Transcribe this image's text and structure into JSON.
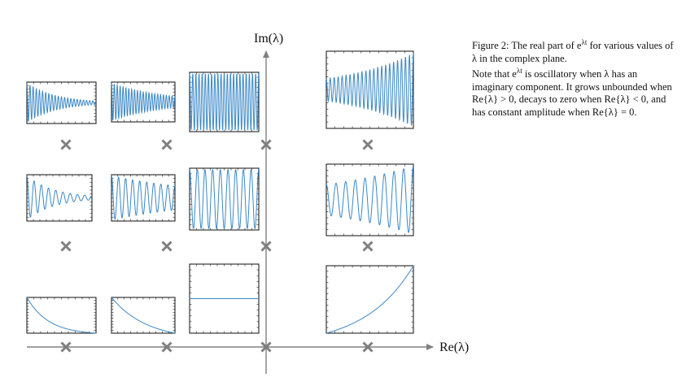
{
  "axes": {
    "x_label": "Re(λ)",
    "y_label": "Im(λ)"
  },
  "caption": {
    "figure_label": "Figure 2:",
    "line1_pre": "The real part of e",
    "line1_sup": "λt",
    "line1_post": " for various values of λ in the complex plane.",
    "line2": "Note that e",
    "line2_sup": "λt",
    "line2_post": " is oscillatory when λ has an imaginary component. It grows unbounded when Re{λ} > 0, decays to zero when Re{λ} < 0, and has constant amplitude when Re{λ} = 0."
  },
  "style": {
    "axis_color": "#808080",
    "marker_color": "#7f7f7f",
    "curve_color": "#3a88c8",
    "frame_color": "#222222"
  },
  "plots": [
    {
      "id": "neg-fast-high-freq",
      "re": -2,
      "im": 2,
      "growth": -1.2,
      "freq": 22,
      "marker": "x"
    },
    {
      "id": "neg-slow-high-freq",
      "re": -1,
      "im": 2,
      "growth": -0.6,
      "freq": 22,
      "marker": "x"
    },
    {
      "id": "zero-high-freq",
      "re": 0,
      "im": 2,
      "growth": 0,
      "freq": 22,
      "marker": "x"
    },
    {
      "id": "pos-high-freq",
      "re": 1,
      "im": 2,
      "growth": 0.6,
      "freq": 22,
      "marker": "x"
    },
    {
      "id": "neg-fast-low-freq",
      "re": -2,
      "im": 1,
      "growth": -1.2,
      "freq": 9,
      "marker": "x"
    },
    {
      "id": "neg-slow-low-freq",
      "re": -1,
      "im": 1,
      "growth": -0.3,
      "freq": 9,
      "marker": "x"
    },
    {
      "id": "zero-low-freq",
      "re": 0,
      "im": 1,
      "growth": 0,
      "freq": 9,
      "marker": "x"
    },
    {
      "id": "pos-low-freq",
      "re": 1,
      "im": 1,
      "growth": 0.4,
      "freq": 9,
      "marker": "x"
    },
    {
      "id": "neg-fast-real",
      "re": -2,
      "im": 0,
      "growth": -1.6,
      "freq": 0,
      "marker": "x"
    },
    {
      "id": "neg-slow-real",
      "re": -1,
      "im": 0,
      "growth": -0.9,
      "freq": 0,
      "marker": "x"
    },
    {
      "id": "zero-real",
      "re": 0,
      "im": 0,
      "growth": 0,
      "freq": 0,
      "marker": "x"
    },
    {
      "id": "pos-real",
      "re": 1,
      "im": 0,
      "growth": 0.9,
      "freq": 0,
      "marker": "x"
    }
  ]
}
